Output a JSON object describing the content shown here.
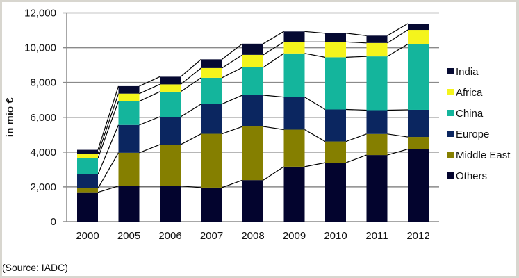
{
  "chart_data": {
    "type": "bar",
    "stacked": true,
    "title": "",
    "xlabel": "",
    "ylabel": "in mio €",
    "ylim": [
      0,
      12000
    ],
    "yticks": [
      "0",
      "2,000",
      "4,000",
      "6,000",
      "8,000",
      "10,000",
      "12,000"
    ],
    "grid": true,
    "legend_position": "right",
    "categories": [
      "2000",
      "2005",
      "2006",
      "2007",
      "2008",
      "2009",
      "2010",
      "2011",
      "2012"
    ],
    "series": [
      {
        "name": "Others",
        "color": "#03042e",
        "values": [
          1690,
          2050,
          2050,
          1960,
          2390,
          3160,
          3390,
          3830,
          4170
        ]
      },
      {
        "name": "Middle East",
        "color": "#857f00",
        "values": [
          230,
          1910,
          2380,
          3090,
          3080,
          2130,
          1220,
          1210,
          700
        ]
      },
      {
        "name": "Europe",
        "color": "#0b2660",
        "values": [
          800,
          1600,
          1600,
          1710,
          1800,
          1870,
          1840,
          1370,
          1560
        ]
      },
      {
        "name": "China",
        "color": "#14b59c",
        "values": [
          930,
          1360,
          1440,
          1510,
          1600,
          2510,
          3000,
          3090,
          3770
        ]
      },
      {
        "name": "Africa",
        "color": "#f4f41c",
        "values": [
          240,
          440,
          420,
          560,
          720,
          660,
          880,
          770,
          820
        ]
      },
      {
        "name": "India",
        "color": "#060a32",
        "values": [
          240,
          430,
          440,
          500,
          640,
          600,
          500,
          420,
          360
        ]
      }
    ],
    "legend_order": [
      "India",
      "Africa",
      "China",
      "Europe",
      "Middle East",
      "Others"
    ],
    "series_lines": true
  },
  "source": "(Source: IADC)"
}
